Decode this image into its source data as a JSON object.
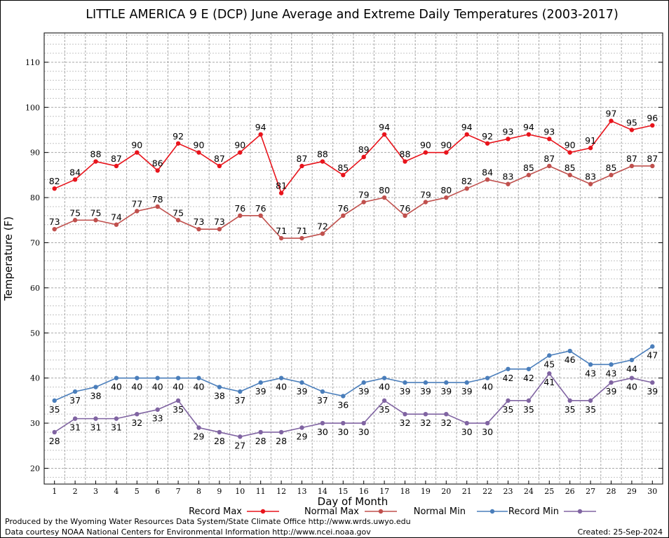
{
  "chart_data": {
    "type": "line",
    "title": "LITTLE AMERICA 9 E (DCP) June Average and Extreme Daily Temperatures (2003-2017)",
    "xlabel": "Day of Month",
    "ylabel": "Temperature (F)",
    "ylim": [
      16.5,
      116.5
    ],
    "yticks": [
      20,
      30,
      40,
      50,
      60,
      70,
      80,
      90,
      100,
      110
    ],
    "grid": true,
    "legend_position": "bottom",
    "x": [
      1,
      2,
      3,
      4,
      5,
      6,
      7,
      8,
      9,
      10,
      11,
      12,
      13,
      14,
      15,
      16,
      17,
      18,
      19,
      20,
      21,
      22,
      23,
      24,
      25,
      26,
      27,
      28,
      29,
      30
    ],
    "series": [
      {
        "name": "Record Max",
        "color": "#e8141c",
        "values": [
          82,
          84,
          88,
          87,
          90,
          86,
          92,
          90,
          87,
          90,
          94,
          81,
          87,
          88,
          85,
          89,
          94,
          88,
          90,
          90,
          94,
          92,
          93,
          94,
          93,
          90,
          91,
          97,
          95,
          96
        ]
      },
      {
        "name": "Normal Max",
        "color": "#c0504d",
        "values": [
          73,
          75,
          75,
          74,
          77,
          78,
          75,
          73,
          73,
          76,
          76,
          71,
          71,
          72,
          76,
          79,
          80,
          76,
          79,
          80,
          82,
          84,
          83,
          85,
          87,
          85,
          83,
          85,
          87,
          87
        ]
      },
      {
        "name": "Normal Min",
        "color": "#4a7ebb",
        "values": [
          35,
          37,
          38,
          40,
          40,
          40,
          40,
          40,
          38,
          37,
          39,
          40,
          39,
          37,
          36,
          39,
          40,
          39,
          39,
          39,
          39,
          40,
          42,
          42,
          45,
          46,
          43,
          43,
          44,
          47
        ]
      },
      {
        "name": "Record Min",
        "color": "#8064a2",
        "values": [
          28,
          31,
          31,
          31,
          32,
          33,
          35,
          29,
          28,
          27,
          28,
          28,
          29,
          30,
          30,
          30,
          35,
          32,
          32,
          32,
          30,
          30,
          35,
          35,
          41,
          35,
          35,
          39,
          40,
          39
        ]
      }
    ]
  },
  "footer": {
    "produced_by": "Produced by the Wyoming Water Resources Data System/State Climate Office http://www.wrds.uwyo.edu",
    "courtesy": "Data courtesy NOAA National Centers for Environmental Information http://www.ncei.noaa.gov",
    "created": "Created:  25-Sep-2024"
  }
}
